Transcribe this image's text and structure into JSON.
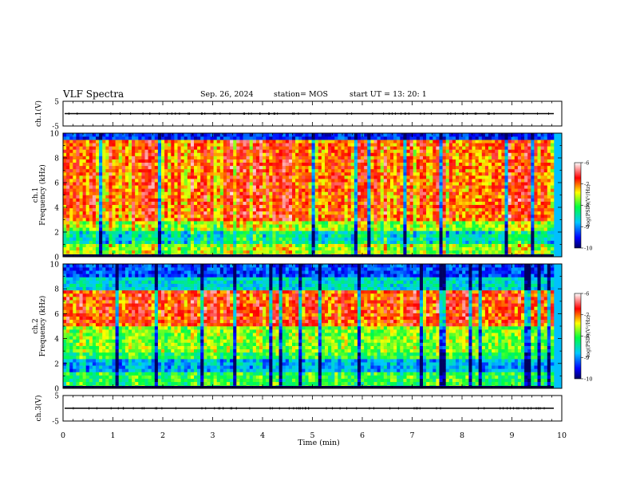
{
  "header": {
    "title": "VLF Spectra",
    "date": "Sep. 26, 2024",
    "station": "station= MOS",
    "start": "start  UT =   13: 20: 1"
  },
  "chart_data": [
    {
      "type": "line",
      "name": "waveform-ch1",
      "ylabel": "ch.1(V)",
      "ylim": [
        -5,
        5
      ],
      "y_ticks": [
        "5",
        "-5"
      ],
      "xlim": [
        0,
        10
      ],
      "approx_level": 0
    },
    {
      "type": "heatmap",
      "name": "spectrogram-ch1",
      "ylabel_lines": [
        "ch.1",
        "Frequency (kHz)"
      ],
      "ylim": [
        0,
        10
      ],
      "y_ticks": [
        "0",
        "2",
        "4",
        "6",
        "8",
        "10"
      ],
      "xlim": [
        0,
        10
      ],
      "colorbar": {
        "label": "log(PSD)(V²/Hz)",
        "range": [
          -10,
          -6
        ],
        "ticks": [
          "-6",
          "-7",
          "-8",
          "-9",
          "-10"
        ]
      }
    },
    {
      "type": "heatmap",
      "name": "spectrogram-ch2",
      "ylabel_lines": [
        "ch.2",
        "Frequency (kHz)"
      ],
      "ylim": [
        0,
        10
      ],
      "y_ticks": [
        "0",
        "2",
        "4",
        "6",
        "8",
        "10"
      ],
      "xlim": [
        0,
        10
      ],
      "colorbar": {
        "label": "log(PSD)(V²/Hz)",
        "range": [
          -10,
          -6
        ],
        "ticks": [
          "-6",
          "-7",
          "-8",
          "-9",
          "-10"
        ]
      }
    },
    {
      "type": "line",
      "name": "waveform-ch3",
      "ylabel": "ch.3(V)",
      "ylim": [
        -5,
        5
      ],
      "y_ticks": [
        "5",
        "-5"
      ],
      "xlim": [
        0,
        10
      ],
      "approx_level": 0
    }
  ],
  "xaxis": {
    "label": "Time (min)",
    "ticks": [
      "0",
      "1",
      "2",
      "3",
      "4",
      "5",
      "6",
      "7",
      "8",
      "9",
      "10"
    ]
  }
}
